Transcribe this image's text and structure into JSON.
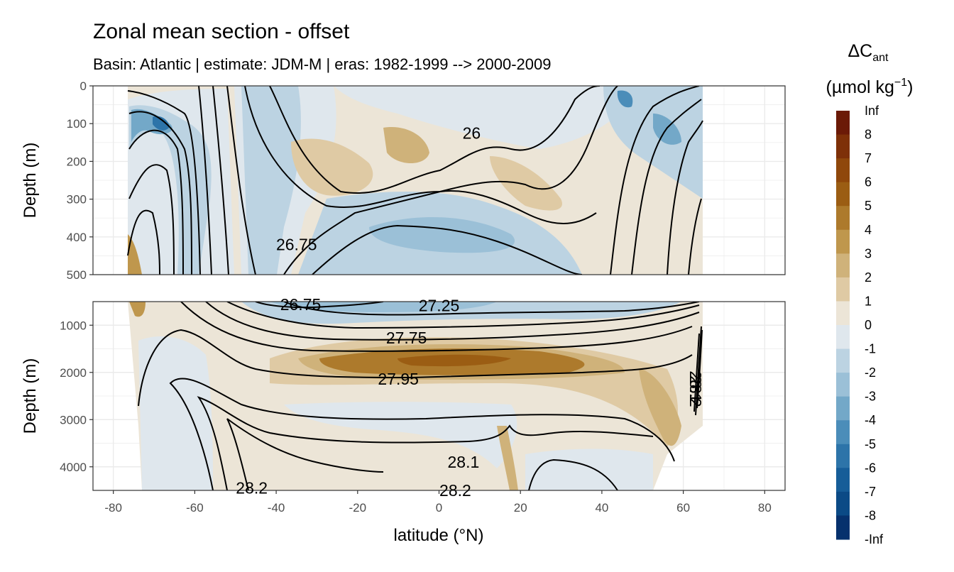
{
  "chart_data": {
    "type": "contour",
    "title": "Zonal mean section - offset",
    "subtitle": "Basin: Atlantic | estimate: JDM-M | eras: 1982-1999 --> 2000-2009",
    "xlabel": "latitude (°N)",
    "xlim": [
      -85,
      85
    ],
    "x_ticks": [
      "-80",
      "-60",
      "-40",
      "-20",
      "0",
      "20",
      "40",
      "60",
      "80"
    ],
    "x_tick_values": [
      -80,
      -60,
      -40,
      -20,
      0,
      20,
      40,
      60,
      80
    ],
    "panels": [
      {
        "name": "upper",
        "ylabel": "Depth (m)",
        "ylim": [
          500,
          0
        ],
        "y_ticks": [
          "0",
          "100",
          "200",
          "300",
          "400",
          "500"
        ],
        "y_tick_values": [
          0,
          100,
          200,
          300,
          400,
          500
        ],
        "contour_labels": [
          {
            "text": "26",
            "lat": 8,
            "depth": 125
          },
          {
            "text": "26.75",
            "lat": -35,
            "depth": 420
          }
        ]
      },
      {
        "name": "lower",
        "ylabel": "Depth (m)",
        "ylim": [
          4500,
          500
        ],
        "y_ticks": [
          "1000",
          "2000",
          "3000",
          "4000"
        ],
        "y_tick_values": [
          1000,
          2000,
          3000,
          4000
        ],
        "contour_labels": [
          {
            "text": "26.75",
            "lat": -34,
            "depth": 560
          },
          {
            "text": "27.25",
            "lat": 0,
            "depth": 580
          },
          {
            "text": "27.75",
            "lat": -8,
            "depth": 1270
          },
          {
            "text": "27.95",
            "lat": -10,
            "depth": 2140
          },
          {
            "text": "28.1",
            "lat": 6,
            "depth": 3900
          },
          {
            "text": "28.2",
            "lat": -46,
            "depth": 4450
          },
          {
            "text": "28.2",
            "lat": 4,
            "depth": 4500
          },
          {
            "text": "28.1",
            "lat": 63,
            "depth": 2300
          },
          {
            "text": "28.2",
            "lat": 63,
            "depth": 2400
          }
        ]
      }
    ],
    "legend": {
      "title": "ΔC",
      "title_sub": "ant",
      "unit_prefix": "(µmol kg",
      "unit_sup": "−1",
      "unit_suffix": ")",
      "labels": [
        "Inf",
        "8",
        "7",
        "6",
        "5",
        "4",
        "3",
        "2",
        "1",
        "0",
        "-1",
        "-2",
        "-3",
        "-4",
        "-5",
        "-6",
        "-7",
        "-8",
        "-Inf"
      ],
      "colors": [
        "#6b1a07",
        "#7e3008",
        "#8f470b",
        "#9b5d13",
        "#ad7a2c",
        "#bf974d",
        "#cfb27a",
        "#dfcaa4",
        "#ece5d7",
        "#dfe7ed",
        "#bcd3e2",
        "#9bc0d7",
        "#73a8c8",
        "#4b8db9",
        "#2d74a9",
        "#165d98",
        "#0b4a86",
        "#06316d",
        "#03195a"
      ]
    }
  }
}
